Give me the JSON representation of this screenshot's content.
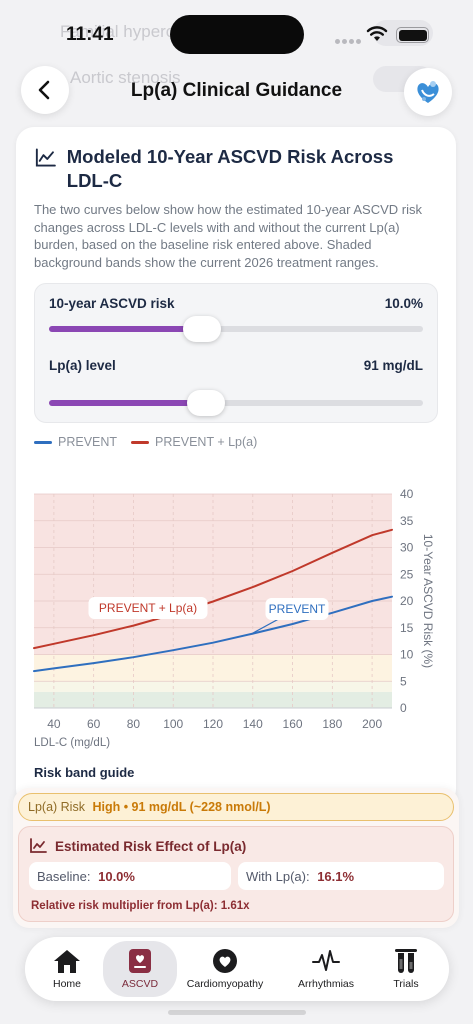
{
  "background": {
    "row1": "Familial hypercholesterolemia",
    "row2": "Aortic stenosis",
    "bottom_pill_key": "Lp(a) Risk",
    "bottom_pill_value": "91 mg/dL (~228 nmol/L)"
  },
  "status_bar": {
    "time": "11:41"
  },
  "header": {
    "title": "Lp(a) Clinical Guidance",
    "back_icon": "chevron-left-icon",
    "brand_icon": "heart-logo-icon"
  },
  "card": {
    "title": "Modeled 10-Year ASCVD Risk Across LDL-C",
    "description": "The two curves below show how the estimated 10-year ASCVD risk changes across LDL-C levels with and without the current Lp(a) burden, based on the baseline risk entered above. Shaded background bands show the current 2026 treatment ranges.",
    "sliders": [
      {
        "label": "10-year ASCVD risk",
        "value": "10.0%",
        "position": 0.41
      },
      {
        "label": "Lp(a) level",
        "value": "91 mg/dL",
        "position": 0.42
      }
    ],
    "legend": [
      {
        "label": "PREVENT",
        "color": "#2f6fbf"
      },
      {
        "label": "PREVENT + Lp(a)",
        "color": "#c0392b"
      }
    ],
    "x_axis_caption": "LDL-C (mg/dL)",
    "risk_band_title": "Risk band guide"
  },
  "chart_data": {
    "type": "line",
    "xlabel": "LDL-C (mg/dL)",
    "ylabel": "10-Year ASCVD Risk (%)",
    "xlim": [
      30,
      210
    ],
    "ylim": [
      0,
      40
    ],
    "x_ticks": [
      "40",
      "60",
      "80",
      "100",
      "120",
      "140",
      "160",
      "180",
      "200"
    ],
    "y_ticks": [
      "40",
      "35",
      "30",
      "25",
      "20",
      "15",
      "10",
      "5",
      "0"
    ],
    "x": [
      30,
      40,
      60,
      80,
      100,
      120,
      140,
      160,
      180,
      200,
      210
    ],
    "series": [
      {
        "name": "PREVENT",
        "color": "#2f6fbf",
        "label": "PREVENT",
        "values": [
          6.9,
          7.4,
          8.4,
          9.5,
          10.8,
          12.2,
          13.9,
          15.7,
          17.8,
          20.0,
          20.8
        ]
      },
      {
        "name": "PREVENT + Lp(a)",
        "color": "#c0392b",
        "label": "PREVENT + Lp(a)",
        "values": [
          11.2,
          12.0,
          13.6,
          15.4,
          17.5,
          19.9,
          22.6,
          25.6,
          29.0,
          32.3,
          33.3
        ]
      }
    ],
    "bands": [
      {
        "from": 0,
        "to": 3,
        "color": "#e3ede3"
      },
      {
        "from": 3,
        "to": 5,
        "color": "#f7f6e8"
      },
      {
        "from": 5,
        "to": 10,
        "color": "#fdf3e1"
      },
      {
        "from": 10,
        "to": 40,
        "color": "#f8e3e1"
      }
    ]
  },
  "summary": {
    "lp_pill_key": "Lp(a) Risk",
    "lp_pill_value": "High • 91 mg/dL (~228 nmol/L)",
    "effect_title": "Estimated Risk Effect of Lp(a)",
    "baseline_label": "Baseline:",
    "baseline_value": "10.0%",
    "with_label": "With Lp(a):",
    "with_value": "16.1%",
    "multiplier": "Relative risk multiplier from Lp(a): 1.61x"
  },
  "tabs": [
    {
      "label": "Home",
      "icon": "house-icon",
      "active": false
    },
    {
      "label": "ASCVD",
      "icon": "clipboard-heart-icon",
      "active": true
    },
    {
      "label": "Cardiomyopathy",
      "icon": "heart-icon",
      "active": false
    },
    {
      "label": "Arrhythmias",
      "icon": "waveform-icon",
      "active": false
    },
    {
      "label": "Trials",
      "icon": "test-tubes-icon",
      "active": false
    }
  ]
}
